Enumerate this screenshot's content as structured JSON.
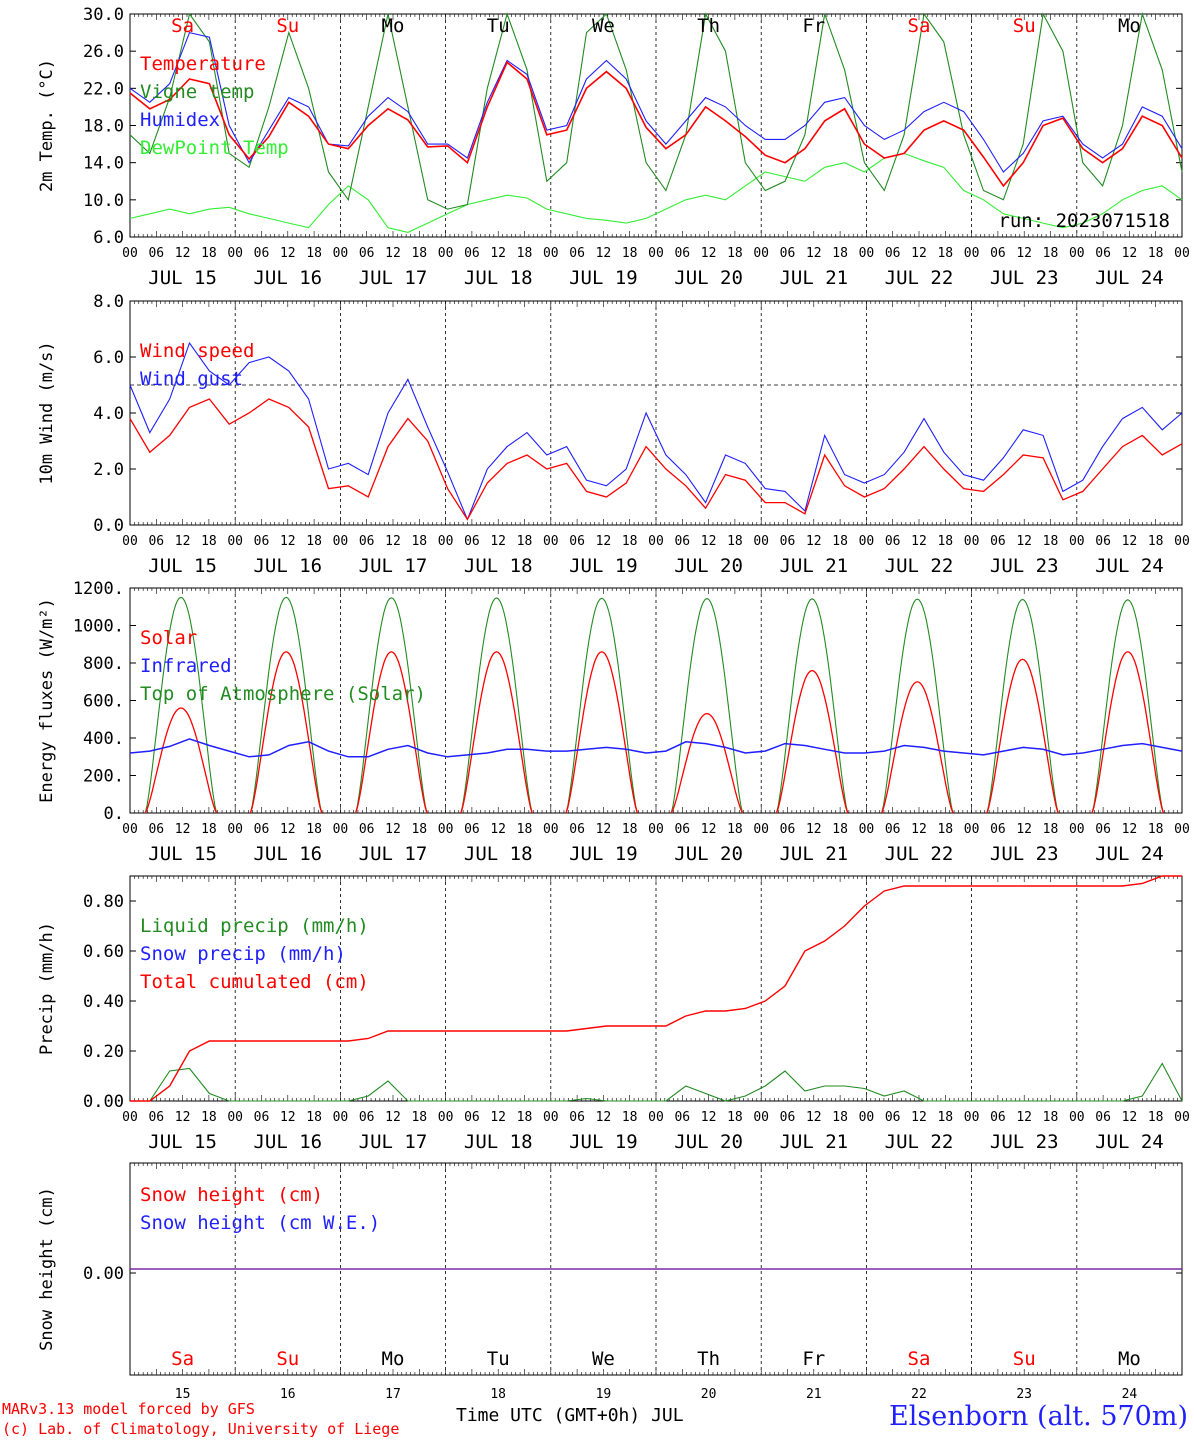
{
  "footer": {
    "model_line": "MARv3.13 model forced by GFS",
    "copyright_line": "(c) Lab. of Climatology, University of Liege",
    "station": "Elsenborn (alt. 570m)",
    "time_axis_label": "Time UTC (GMT+0h) JUL"
  },
  "colors": {
    "red": "#ff0000",
    "dark_green": "#228B22",
    "blue": "#1f1fff",
    "light_green": "#33ee33",
    "purple": "#7b2aa8"
  },
  "chart_data": [
    {
      "type": "line",
      "ylabel": "2m Temp. (°C)",
      "ylim": [
        6,
        30
      ],
      "yticks": [
        "30.0",
        "26.0",
        "22.0",
        "18.0",
        "14.0",
        "10.0",
        "6.0"
      ],
      "annotation": "run: 2023071518",
      "day_names": [
        "Sa",
        "Su",
        "Mo",
        "Tu",
        "We",
        "Th",
        "Fr",
        "Sa",
        "Su",
        "Mo"
      ],
      "day_labels": [
        "JUL 15",
        "JUL 16",
        "JUL 17",
        "JUL 18",
        "JUL 19",
        "JUL 20",
        "JUL 21",
        "JUL 22",
        "JUL 23",
        "JUL 24"
      ],
      "hour_ticks": [
        "00",
        "06",
        "12",
        "18"
      ],
      "legend": [
        "Temperature",
        "Vigne temp",
        "Humidex",
        "DewPoint Temp"
      ],
      "series": [
        {
          "name": "Temperature",
          "color": "red",
          "values": [
            21.5,
            19.8,
            20.8,
            23.0,
            22.5,
            17.0,
            14.4,
            16.8,
            20.5,
            19.0,
            16.0,
            15.5,
            18.0,
            19.8,
            18.6,
            15.7,
            15.8,
            14.0,
            20.0,
            24.8,
            23.0,
            17.0,
            17.5,
            22.0,
            23.8,
            22.0,
            17.8,
            15.5,
            17.0,
            20.0,
            18.5,
            16.8,
            14.8,
            14.0,
            15.5,
            18.5,
            19.8,
            16.0,
            14.5,
            15.0,
            17.5,
            18.5,
            17.5,
            14.6,
            11.5,
            14.0,
            18.0,
            18.8,
            15.5,
            14.0,
            15.5,
            19.0,
            18.0,
            14.5
          ]
        },
        {
          "name": "Vigne temp",
          "color": "dark_green",
          "values": [
            17.0,
            15.0,
            21.0,
            30.0,
            27.0,
            15.0,
            13.5,
            20.0,
            28.0,
            22.0,
            13.0,
            10.0,
            20.0,
            30.0,
            20.0,
            10.0,
            9.0,
            9.5,
            22.0,
            30.0,
            24.0,
            12.0,
            14.0,
            28.0,
            30.0,
            24.0,
            14.0,
            11.0,
            17.0,
            30.0,
            26.0,
            14.0,
            11.0,
            12.0,
            17.0,
            30.0,
            24.0,
            14.0,
            11.0,
            17.0,
            30.0,
            27.0,
            17.0,
            11.0,
            10.0,
            16.0,
            30.0,
            26.0,
            14.0,
            11.5,
            18.0,
            30.0,
            24.0,
            13.0
          ]
        },
        {
          "name": "Humidex",
          "color": "blue",
          "values": [
            22.0,
            20.5,
            22.5,
            28.0,
            27.5,
            18.0,
            14.0,
            17.5,
            21.0,
            20.0,
            16.0,
            15.8,
            19.0,
            21.0,
            19.5,
            16.0,
            16.0,
            14.5,
            20.5,
            25.0,
            23.5,
            17.5,
            18.0,
            23.0,
            25.0,
            23.0,
            18.5,
            16.0,
            18.5,
            21.0,
            20.0,
            18.0,
            16.5,
            16.5,
            18.0,
            20.5,
            21.0,
            18.0,
            16.5,
            17.5,
            19.5,
            20.5,
            19.5,
            16.5,
            13.0,
            15.0,
            18.5,
            19.0,
            16.0,
            14.5,
            16.0,
            20.0,
            19.0,
            15.5
          ]
        },
        {
          "name": "DewPoint Temp",
          "color": "light_green",
          "values": [
            8.0,
            8.5,
            9.0,
            8.5,
            9.0,
            9.2,
            8.5,
            8.0,
            7.5,
            7.0,
            9.5,
            11.5,
            10.0,
            7.0,
            6.5,
            7.5,
            8.5,
            9.5,
            10.0,
            10.5,
            10.2,
            9.0,
            8.5,
            8.0,
            7.8,
            7.5,
            8.0,
            9.0,
            10.0,
            10.5,
            10.0,
            11.5,
            13.0,
            12.5,
            12.0,
            13.5,
            14.0,
            13.0,
            14.5,
            15.0,
            14.2,
            13.5,
            11.0,
            10.0,
            8.5,
            8.0,
            7.5,
            7.0,
            7.5,
            8.5,
            10.0,
            11.0,
            11.5,
            10.0
          ]
        }
      ]
    },
    {
      "type": "line",
      "ylabel": "10m Wind (m/s)",
      "ylim": [
        0,
        8
      ],
      "yticks": [
        "8.0",
        "6.0",
        "4.0",
        "2.0",
        "0.0"
      ],
      "day_labels": [
        "JUL 15",
        "JUL 16",
        "JUL 17",
        "JUL 18",
        "JUL 19",
        "JUL 20",
        "JUL 21",
        "JUL 22",
        "JUL 23",
        "JUL 24"
      ],
      "hour_ticks": [
        "00",
        "06",
        "12",
        "18"
      ],
      "reference_line": 5.0,
      "legend": [
        "Wind speed",
        "Wind gust"
      ],
      "series": [
        {
          "name": "Wind speed",
          "color": "red",
          "values": [
            3.8,
            2.6,
            3.2,
            4.2,
            4.5,
            3.6,
            4.0,
            4.5,
            4.2,
            3.5,
            1.3,
            1.4,
            1.0,
            2.8,
            3.8,
            3.0,
            1.3,
            0.2,
            1.5,
            2.2,
            2.5,
            2.0,
            2.2,
            1.2,
            1.0,
            1.5,
            2.8,
            2.0,
            1.4,
            0.6,
            1.8,
            1.6,
            0.8,
            0.8,
            0.4,
            2.5,
            1.4,
            1.0,
            1.3,
            2.0,
            2.8,
            2.0,
            1.3,
            1.2,
            1.8,
            2.5,
            2.4,
            0.9,
            1.2,
            2.0,
            2.8,
            3.2,
            2.5,
            2.9
          ]
        },
        {
          "name": "Wind gust",
          "color": "blue",
          "values": [
            5.0,
            3.3,
            4.5,
            6.5,
            5.5,
            5.0,
            5.8,
            6.0,
            5.5,
            4.5,
            2.0,
            2.2,
            1.8,
            4.0,
            5.2,
            3.5,
            1.9,
            0.2,
            2.0,
            2.8,
            3.3,
            2.5,
            2.8,
            1.6,
            1.4,
            2.0,
            4.0,
            2.5,
            1.8,
            0.8,
            2.5,
            2.2,
            1.3,
            1.2,
            0.5,
            3.2,
            1.8,
            1.5,
            1.8,
            2.6,
            3.8,
            2.6,
            1.8,
            1.6,
            2.4,
            3.4,
            3.2,
            1.2,
            1.6,
            2.8,
            3.8,
            4.2,
            3.4,
            4.0
          ]
        }
      ]
    },
    {
      "type": "line",
      "ylabel": "Energy fluxes (W/m²)",
      "ylim": [
        0,
        1200
      ],
      "yticks": [
        "1200.",
        "1000.",
        "800.",
        "600.",
        "400.",
        "200.",
        "0."
      ],
      "day_labels": [
        "JUL 15",
        "JUL 16",
        "JUL 17",
        "JUL 18",
        "JUL 19",
        "JUL 20",
        "JUL 21",
        "JUL 22",
        "JUL 23",
        "JUL 24"
      ],
      "hour_ticks": [
        "00",
        "06",
        "12",
        "18"
      ],
      "legend": [
        "Solar",
        "Infrared",
        "Top of Atmosphere (Solar)"
      ],
      "daily_peaks": {
        "Solar": [
          560,
          860,
          860,
          860,
          860,
          530,
          760,
          700,
          820,
          860
        ],
        "Top of Atmosphere (Solar)": [
          1150,
          1150,
          1148,
          1147,
          1145,
          1144,
          1142,
          1141,
          1139,
          1137
        ]
      },
      "series": [
        {
          "name": "Infrared",
          "color": "blue",
          "values": [
            320,
            330,
            355,
            395,
            360,
            330,
            300,
            310,
            360,
            380,
            330,
            300,
            300,
            340,
            360,
            320,
            300,
            310,
            320,
            340,
            340,
            330,
            330,
            340,
            350,
            340,
            320,
            330,
            380,
            370,
            350,
            320,
            330,
            370,
            360,
            340,
            320,
            320,
            330,
            360,
            350,
            330,
            320,
            310,
            330,
            350,
            340,
            310,
            320,
            340,
            360,
            370,
            350,
            330
          ]
        }
      ]
    },
    {
      "type": "line",
      "ylabel": "Precip (mm/h)",
      "ylim": [
        0,
        0.9
      ],
      "yticks": [
        "0.80",
        "0.60",
        "0.40",
        "0.20",
        "0.00"
      ],
      "day_labels": [
        "JUL 15",
        "JUL 16",
        "JUL 17",
        "JUL 18",
        "JUL 19",
        "JUL 20",
        "JUL 21",
        "JUL 22",
        "JUL 23",
        "JUL 24"
      ],
      "hour_ticks": [
        "00",
        "06",
        "12",
        "18"
      ],
      "legend": [
        "Liquid precip (mm/h)",
        "Snow precip (mm/h)",
        "Total cumulated (cm)"
      ],
      "series": [
        {
          "name": "Total cumulated (cm)",
          "color": "red",
          "values": [
            0.0,
            0.0,
            0.06,
            0.2,
            0.24,
            0.24,
            0.24,
            0.24,
            0.24,
            0.24,
            0.24,
            0.24,
            0.25,
            0.28,
            0.28,
            0.28,
            0.28,
            0.28,
            0.28,
            0.28,
            0.28,
            0.28,
            0.28,
            0.29,
            0.3,
            0.3,
            0.3,
            0.3,
            0.34,
            0.36,
            0.36,
            0.37,
            0.4,
            0.46,
            0.6,
            0.64,
            0.7,
            0.78,
            0.84,
            0.86,
            0.86,
            0.86,
            0.86,
            0.86,
            0.86,
            0.86,
            0.86,
            0.86,
            0.86,
            0.86,
            0.86,
            0.87,
            0.9,
            0.9
          ]
        },
        {
          "name": "Liquid precip (mm/h)",
          "color": "dark_green",
          "values": [
            0,
            0,
            0.12,
            0.13,
            0.03,
            0,
            0,
            0,
            0,
            0,
            0,
            0,
            0.02,
            0.08,
            0,
            0,
            0,
            0,
            0,
            0,
            0,
            0,
            0,
            0.01,
            0,
            0,
            0,
            0,
            0.06,
            0.03,
            0,
            0.02,
            0.06,
            0.12,
            0.04,
            0.06,
            0.06,
            0.05,
            0.02,
            0.04,
            0,
            0,
            0,
            0,
            0,
            0,
            0,
            0,
            0,
            0,
            0,
            0.02,
            0.15,
            0
          ]
        }
      ]
    },
    {
      "type": "line",
      "ylabel": "Snow height (cm)",
      "yticks": [
        "0.00"
      ],
      "legend": [
        "Snow height (cm)",
        "Snow height (cm W.E.)"
      ],
      "day_names": [
        "Sa",
        "Su",
        "Mo",
        "Tu",
        "We",
        "Th",
        "Fr",
        "Sa",
        "Su",
        "Mo"
      ],
      "day_numbers": [
        "15",
        "16",
        "17",
        "18",
        "19",
        "20",
        "21",
        "22",
        "23",
        "24"
      ],
      "series": [
        {
          "name": "Snow height (cm)",
          "color": "red",
          "values": [
            0,
            0
          ]
        },
        {
          "name": "Snow height (cm W.E.)",
          "color": "blue",
          "values": [
            0,
            0
          ]
        }
      ]
    }
  ]
}
